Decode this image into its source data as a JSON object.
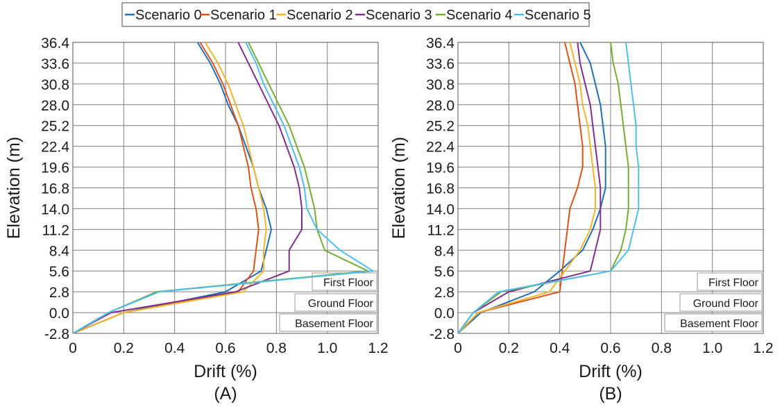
{
  "legend": {
    "entries": [
      {
        "name": "Scenario 0",
        "color": "#1f6fb4"
      },
      {
        "name": "Scenario 1",
        "color": "#d95319"
      },
      {
        "name": "Scenario 2",
        "color": "#f1b52b"
      },
      {
        "name": "Scenario 3",
        "color": "#7e2f8e"
      },
      {
        "name": "Scenario 4",
        "color": "#77ac30"
      },
      {
        "name": "Scenario 5",
        "color": "#4dbeee"
      }
    ]
  },
  "chart_data": [
    {
      "type": "line",
      "panel_label": "(A)",
      "xlabel": "Drift (%)",
      "ylabel": "Elevation (m)",
      "xlim": [
        0,
        1.2
      ],
      "ylim": [
        -2.8,
        36.4
      ],
      "xticks": [
        "0",
        "0.2",
        "0.4",
        "0.6",
        "0.8",
        "1.0",
        "1.2"
      ],
      "yticks": [
        "-2.8",
        "0.0",
        "2.8",
        "5.6",
        "8.4",
        "11.2",
        "14.0",
        "16.8",
        "19.6",
        "22.4",
        "25.2",
        "28.0",
        "30.8",
        "33.6",
        "36.4"
      ],
      "grid": true,
      "floor_labels": [
        "First Floor",
        "Ground Floor",
        "Basement Floor"
      ],
      "series": [
        {
          "name": "Scenario 0",
          "color": "#1f6fb4",
          "points": [
            [
              0,
              -2.8
            ],
            [
              0.2,
              0.0
            ],
            [
              0.6,
              2.8
            ],
            [
              0.74,
              5.6
            ],
            [
              0.76,
              8.4
            ],
            [
              0.78,
              11.2
            ],
            [
              0.76,
              14.0
            ],
            [
              0.73,
              16.8
            ],
            [
              0.71,
              19.6
            ],
            [
              0.68,
              22.4
            ],
            [
              0.65,
              25.2
            ],
            [
              0.61,
              28.0
            ],
            [
              0.58,
              30.8
            ],
            [
              0.54,
              33.6
            ],
            [
              0.49,
              36.4
            ]
          ]
        },
        {
          "name": "Scenario 1",
          "color": "#d95319",
          "points": [
            [
              0,
              -2.8
            ],
            [
              0.2,
              0.0
            ],
            [
              0.65,
              2.8
            ],
            [
              0.71,
              5.6
            ],
            [
              0.72,
              8.4
            ],
            [
              0.73,
              11.2
            ],
            [
              0.72,
              14.0
            ],
            [
              0.7,
              16.8
            ],
            [
              0.69,
              19.6
            ],
            [
              0.67,
              22.4
            ],
            [
              0.65,
              25.2
            ],
            [
              0.62,
              28.0
            ],
            [
              0.59,
              30.8
            ],
            [
              0.55,
              33.6
            ],
            [
              0.5,
              36.4
            ]
          ]
        },
        {
          "name": "Scenario 2",
          "color": "#f1b52b",
          "points": [
            [
              0,
              -2.8
            ],
            [
              0.2,
              0.0
            ],
            [
              0.67,
              2.8
            ],
            [
              0.75,
              5.6
            ],
            [
              0.75,
              8.4
            ],
            [
              0.76,
              11.2
            ],
            [
              0.75,
              14.0
            ],
            [
              0.73,
              16.8
            ],
            [
              0.71,
              19.6
            ],
            [
              0.69,
              22.4
            ],
            [
              0.67,
              25.2
            ],
            [
              0.64,
              28.0
            ],
            [
              0.61,
              30.8
            ],
            [
              0.57,
              33.6
            ],
            [
              0.52,
              36.4
            ]
          ]
        },
        {
          "name": "Scenario 3",
          "color": "#7e2f8e",
          "points": [
            [
              0,
              -2.8
            ],
            [
              0.15,
              0.0
            ],
            [
              0.64,
              2.8
            ],
            [
              0.85,
              5.6
            ],
            [
              0.85,
              8.4
            ],
            [
              0.9,
              11.2
            ],
            [
              0.9,
              14.0
            ],
            [
              0.89,
              16.8
            ],
            [
              0.87,
              19.6
            ],
            [
              0.84,
              22.4
            ],
            [
              0.81,
              25.2
            ],
            [
              0.77,
              28.0
            ],
            [
              0.73,
              30.8
            ],
            [
              0.69,
              33.6
            ],
            [
              0.65,
              36.4
            ]
          ]
        },
        {
          "name": "Scenario 4",
          "color": "#77ac30",
          "points": [
            [
              0,
              -2.8
            ],
            [
              0.14,
              0.0
            ],
            [
              0.33,
              2.8
            ],
            [
              1.16,
              5.6
            ],
            [
              0.99,
              8.4
            ],
            [
              0.96,
              11.2
            ],
            [
              0.95,
              14.0
            ],
            [
              0.93,
              16.8
            ],
            [
              0.91,
              19.6
            ],
            [
              0.88,
              22.4
            ],
            [
              0.85,
              25.2
            ],
            [
              0.81,
              28.0
            ],
            [
              0.77,
              30.8
            ],
            [
              0.73,
              33.6
            ],
            [
              0.69,
              36.4
            ]
          ]
        },
        {
          "name": "Scenario 5",
          "color": "#4dbeee",
          "points": [
            [
              0,
              -2.8
            ],
            [
              0.14,
              0.0
            ],
            [
              0.34,
              2.8
            ],
            [
              1.18,
              5.6
            ],
            [
              1.05,
              8.4
            ],
            [
              0.96,
              11.2
            ],
            [
              0.92,
              14.0
            ],
            [
              0.91,
              16.8
            ],
            [
              0.89,
              19.6
            ],
            [
              0.86,
              22.4
            ],
            [
              0.83,
              25.2
            ],
            [
              0.79,
              28.0
            ],
            [
              0.75,
              30.8
            ],
            [
              0.72,
              33.6
            ],
            [
              0.68,
              36.4
            ]
          ]
        }
      ]
    },
    {
      "type": "line",
      "panel_label": "(B)",
      "xlabel": "Drift (%)",
      "ylabel": "Elevation (m)",
      "xlim": [
        0,
        1.2
      ],
      "ylim": [
        -2.8,
        36.4
      ],
      "xticks": [
        "0",
        "0.2",
        "0.4",
        "0.6",
        "0.8",
        "1.0",
        "1.2"
      ],
      "yticks": [
        "-2.8",
        "0.0",
        "2.8",
        "5.6",
        "8.4",
        "11.2",
        "14.0",
        "16.8",
        "19.6",
        "22.4",
        "25.2",
        "28.0",
        "30.8",
        "33.6",
        "36.4"
      ],
      "grid": true,
      "floor_labels": [
        "First Floor",
        "Ground Floor",
        "Basement Floor"
      ],
      "series": [
        {
          "name": "Scenario 0",
          "color": "#1f6fb4",
          "points": [
            [
              0,
              -2.8
            ],
            [
              0.09,
              0.0
            ],
            [
              0.3,
              2.8
            ],
            [
              0.4,
              5.6
            ],
            [
              0.49,
              8.4
            ],
            [
              0.53,
              11.2
            ],
            [
              0.56,
              14.0
            ],
            [
              0.58,
              16.8
            ],
            [
              0.58,
              19.6
            ],
            [
              0.58,
              22.4
            ],
            [
              0.57,
              25.2
            ],
            [
              0.56,
              28.0
            ],
            [
              0.54,
              30.8
            ],
            [
              0.52,
              33.6
            ],
            [
              0.48,
              36.4
            ]
          ]
        },
        {
          "name": "Scenario 1",
          "color": "#d95319",
          "points": [
            [
              0,
              -2.8
            ],
            [
              0.08,
              0.0
            ],
            [
              0.4,
              2.8
            ],
            [
              0.41,
              5.6
            ],
            [
              0.42,
              8.4
            ],
            [
              0.43,
              11.2
            ],
            [
              0.44,
              14.0
            ],
            [
              0.47,
              16.8
            ],
            [
              0.49,
              19.6
            ],
            [
              0.49,
              22.4
            ],
            [
              0.48,
              25.2
            ],
            [
              0.47,
              28.0
            ],
            [
              0.46,
              30.8
            ],
            [
              0.44,
              33.6
            ],
            [
              0.42,
              36.4
            ]
          ]
        },
        {
          "name": "Scenario 2",
          "color": "#f1b52b",
          "points": [
            [
              0,
              -2.8
            ],
            [
              0.08,
              0.0
            ],
            [
              0.36,
              2.8
            ],
            [
              0.42,
              5.6
            ],
            [
              0.48,
              8.4
            ],
            [
              0.52,
              11.2
            ],
            [
              0.54,
              14.0
            ],
            [
              0.54,
              16.8
            ],
            [
              0.53,
              19.6
            ],
            [
              0.52,
              22.4
            ],
            [
              0.51,
              25.2
            ],
            [
              0.49,
              28.0
            ],
            [
              0.48,
              30.8
            ],
            [
              0.46,
              33.6
            ],
            [
              0.44,
              36.4
            ]
          ]
        },
        {
          "name": "Scenario 3",
          "color": "#7e2f8e",
          "points": [
            [
              0,
              -2.8
            ],
            [
              0.06,
              0.0
            ],
            [
              0.2,
              2.8
            ],
            [
              0.52,
              5.6
            ],
            [
              0.54,
              8.4
            ],
            [
              0.56,
              11.2
            ],
            [
              0.56,
              14.0
            ],
            [
              0.56,
              16.8
            ],
            [
              0.55,
              19.6
            ],
            [
              0.54,
              22.4
            ],
            [
              0.53,
              25.2
            ],
            [
              0.52,
              28.0
            ],
            [
              0.5,
              30.8
            ],
            [
              0.48,
              33.6
            ],
            [
              0.47,
              36.4
            ]
          ]
        },
        {
          "name": "Scenario 4",
          "color": "#77ac30",
          "points": [
            [
              0,
              -2.8
            ],
            [
              0.06,
              0.0
            ],
            [
              0.17,
              2.8
            ],
            [
              0.6,
              5.6
            ],
            [
              0.64,
              8.4
            ],
            [
              0.66,
              11.2
            ],
            [
              0.67,
              14.0
            ],
            [
              0.67,
              16.8
            ],
            [
              0.67,
              19.6
            ],
            [
              0.66,
              22.4
            ],
            [
              0.65,
              25.2
            ],
            [
              0.64,
              28.0
            ],
            [
              0.63,
              30.8
            ],
            [
              0.61,
              33.6
            ],
            [
              0.6,
              36.4
            ]
          ]
        },
        {
          "name": "Scenario 5",
          "color": "#4dbeee",
          "points": [
            [
              0,
              -2.8
            ],
            [
              0.06,
              0.0
            ],
            [
              0.16,
              2.8
            ],
            [
              0.6,
              5.6
            ],
            [
              0.67,
              8.4
            ],
            [
              0.69,
              11.2
            ],
            [
              0.71,
              14.0
            ],
            [
              0.71,
              16.8
            ],
            [
              0.71,
              19.6
            ],
            [
              0.7,
              22.4
            ],
            [
              0.7,
              25.2
            ],
            [
              0.69,
              28.0
            ],
            [
              0.68,
              30.8
            ],
            [
              0.67,
              33.6
            ],
            [
              0.66,
              36.4
            ]
          ]
        }
      ]
    }
  ]
}
